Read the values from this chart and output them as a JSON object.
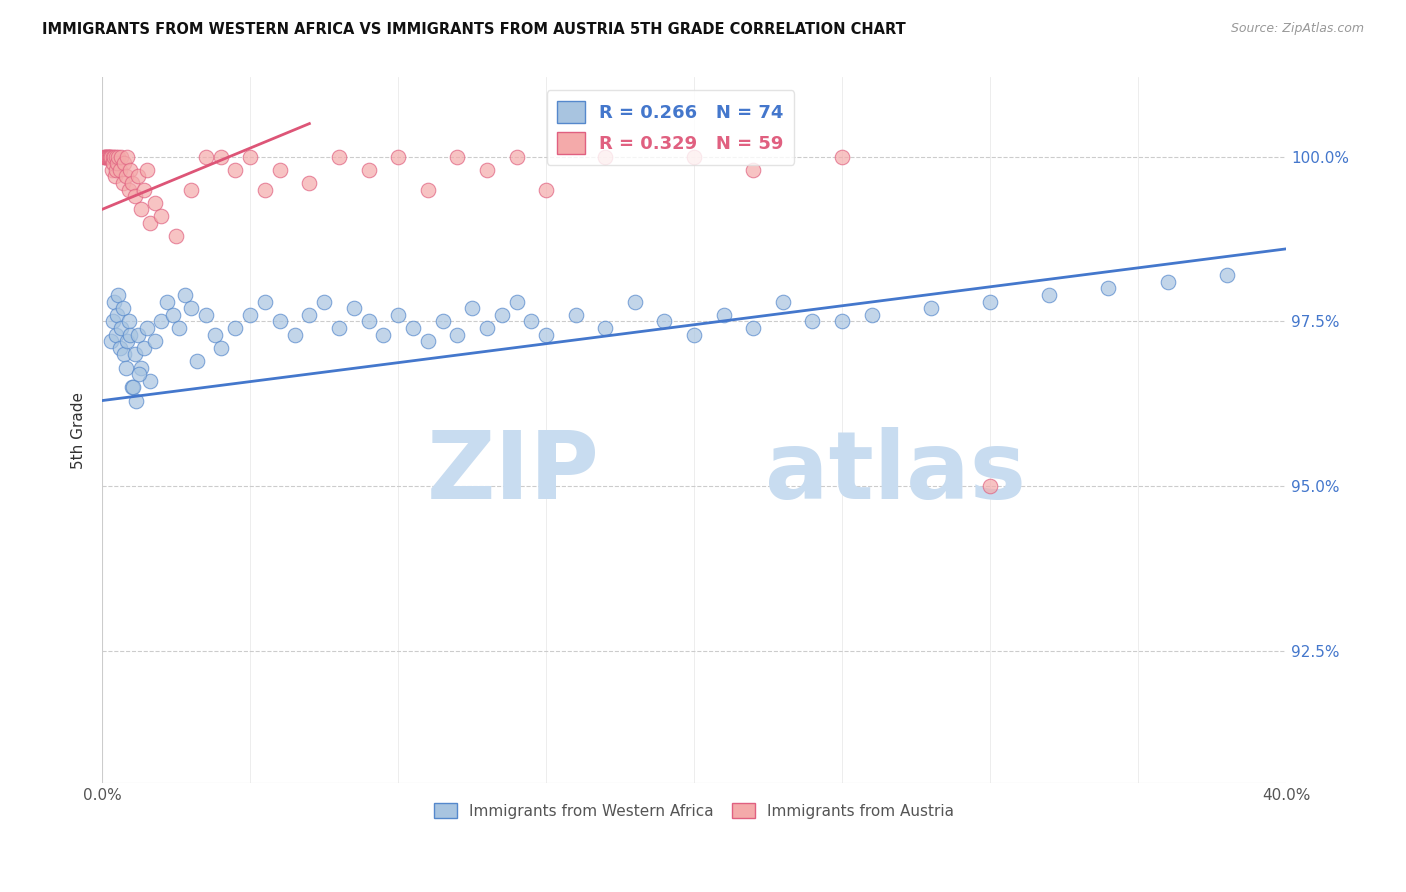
{
  "title": "IMMIGRANTS FROM WESTERN AFRICA VS IMMIGRANTS FROM AUSTRIA 5TH GRADE CORRELATION CHART",
  "source": "Source: ZipAtlas.com",
  "ylabel": "5th Grade",
  "ytick_values": [
    92.5,
    95.0,
    97.5,
    100.0
  ],
  "xlim": [
    0.0,
    40.0
  ],
  "ylim": [
    90.5,
    101.2
  ],
  "blue_R": 0.266,
  "blue_N": 74,
  "pink_R": 0.329,
  "pink_N": 59,
  "blue_color": "#A8C4E0",
  "pink_color": "#F4AAAA",
  "blue_edge_color": "#5588CC",
  "pink_edge_color": "#E06080",
  "blue_line_color": "#4477CC",
  "pink_line_color": "#DD5577",
  "legend_label_blue": "Immigrants from Western Africa",
  "legend_label_pink": "Immigrants from Austria",
  "blue_scatter_x": [
    0.3,
    0.35,
    0.4,
    0.45,
    0.5,
    0.55,
    0.6,
    0.65,
    0.7,
    0.75,
    0.8,
    0.85,
    0.9,
    0.95,
    1.0,
    1.1,
    1.2,
    1.3,
    1.4,
    1.5,
    1.6,
    1.8,
    2.0,
    2.2,
    2.4,
    2.6,
    2.8,
    3.0,
    3.2,
    3.5,
    3.8,
    4.0,
    4.5,
    5.0,
    5.5,
    6.0,
    6.5,
    7.0,
    7.5,
    8.0,
    8.5,
    9.0,
    9.5,
    10.0,
    10.5,
    11.0,
    11.5,
    12.0,
    12.5,
    13.0,
    13.5,
    14.0,
    14.5,
    15.0,
    16.0,
    17.0,
    18.0,
    19.0,
    20.0,
    21.0,
    22.0,
    23.0,
    24.0,
    26.0,
    28.0,
    30.0,
    32.0,
    34.0,
    36.0,
    38.0,
    1.05,
    1.15,
    1.25,
    25.0
  ],
  "blue_scatter_y": [
    97.2,
    97.5,
    97.8,
    97.3,
    97.6,
    97.9,
    97.1,
    97.4,
    97.7,
    97.0,
    96.8,
    97.2,
    97.5,
    97.3,
    96.5,
    97.0,
    97.3,
    96.8,
    97.1,
    97.4,
    96.6,
    97.2,
    97.5,
    97.8,
    97.6,
    97.4,
    97.9,
    97.7,
    96.9,
    97.6,
    97.3,
    97.1,
    97.4,
    97.6,
    97.8,
    97.5,
    97.3,
    97.6,
    97.8,
    97.4,
    97.7,
    97.5,
    97.3,
    97.6,
    97.4,
    97.2,
    97.5,
    97.3,
    97.7,
    97.4,
    97.6,
    97.8,
    97.5,
    97.3,
    97.6,
    97.4,
    97.8,
    97.5,
    97.3,
    97.6,
    97.4,
    97.8,
    97.5,
    97.6,
    97.7,
    97.8,
    97.9,
    98.0,
    98.1,
    98.2,
    96.5,
    96.3,
    96.7,
    97.5
  ],
  "pink_scatter_x": [
    0.05,
    0.08,
    0.1,
    0.12,
    0.15,
    0.18,
    0.2,
    0.22,
    0.25,
    0.28,
    0.3,
    0.32,
    0.35,
    0.38,
    0.4,
    0.42,
    0.45,
    0.48,
    0.5,
    0.55,
    0.6,
    0.65,
    0.7,
    0.75,
    0.8,
    0.85,
    0.9,
    0.95,
    1.0,
    1.1,
    1.2,
    1.3,
    1.4,
    1.5,
    1.6,
    1.8,
    2.0,
    2.5,
    3.0,
    3.5,
    4.0,
    4.5,
    5.0,
    5.5,
    6.0,
    7.0,
    8.0,
    9.0,
    10.0,
    11.0,
    12.0,
    13.0,
    14.0,
    15.0,
    17.0,
    20.0,
    22.0,
    25.0,
    30.0
  ],
  "pink_scatter_y": [
    100.0,
    100.0,
    100.0,
    100.0,
    100.0,
    100.0,
    100.0,
    100.0,
    100.0,
    100.0,
    100.0,
    99.8,
    100.0,
    99.9,
    100.0,
    99.7,
    100.0,
    99.8,
    99.9,
    100.0,
    99.8,
    100.0,
    99.6,
    99.9,
    99.7,
    100.0,
    99.5,
    99.8,
    99.6,
    99.4,
    99.7,
    99.2,
    99.5,
    99.8,
    99.0,
    99.3,
    99.1,
    98.8,
    99.5,
    100.0,
    100.0,
    99.8,
    100.0,
    99.5,
    99.8,
    99.6,
    100.0,
    99.8,
    100.0,
    99.5,
    100.0,
    99.8,
    100.0,
    99.5,
    100.0,
    100.0,
    99.8,
    100.0,
    95.0
  ],
  "watermark_zip": "ZIP",
  "watermark_atlas": "atlas",
  "blue_trendline_x": [
    0.0,
    40.0
  ],
  "blue_trendline_y": [
    96.3,
    98.6
  ],
  "pink_trendline_x": [
    0.0,
    7.0
  ],
  "pink_trendline_y": [
    99.2,
    100.5
  ]
}
